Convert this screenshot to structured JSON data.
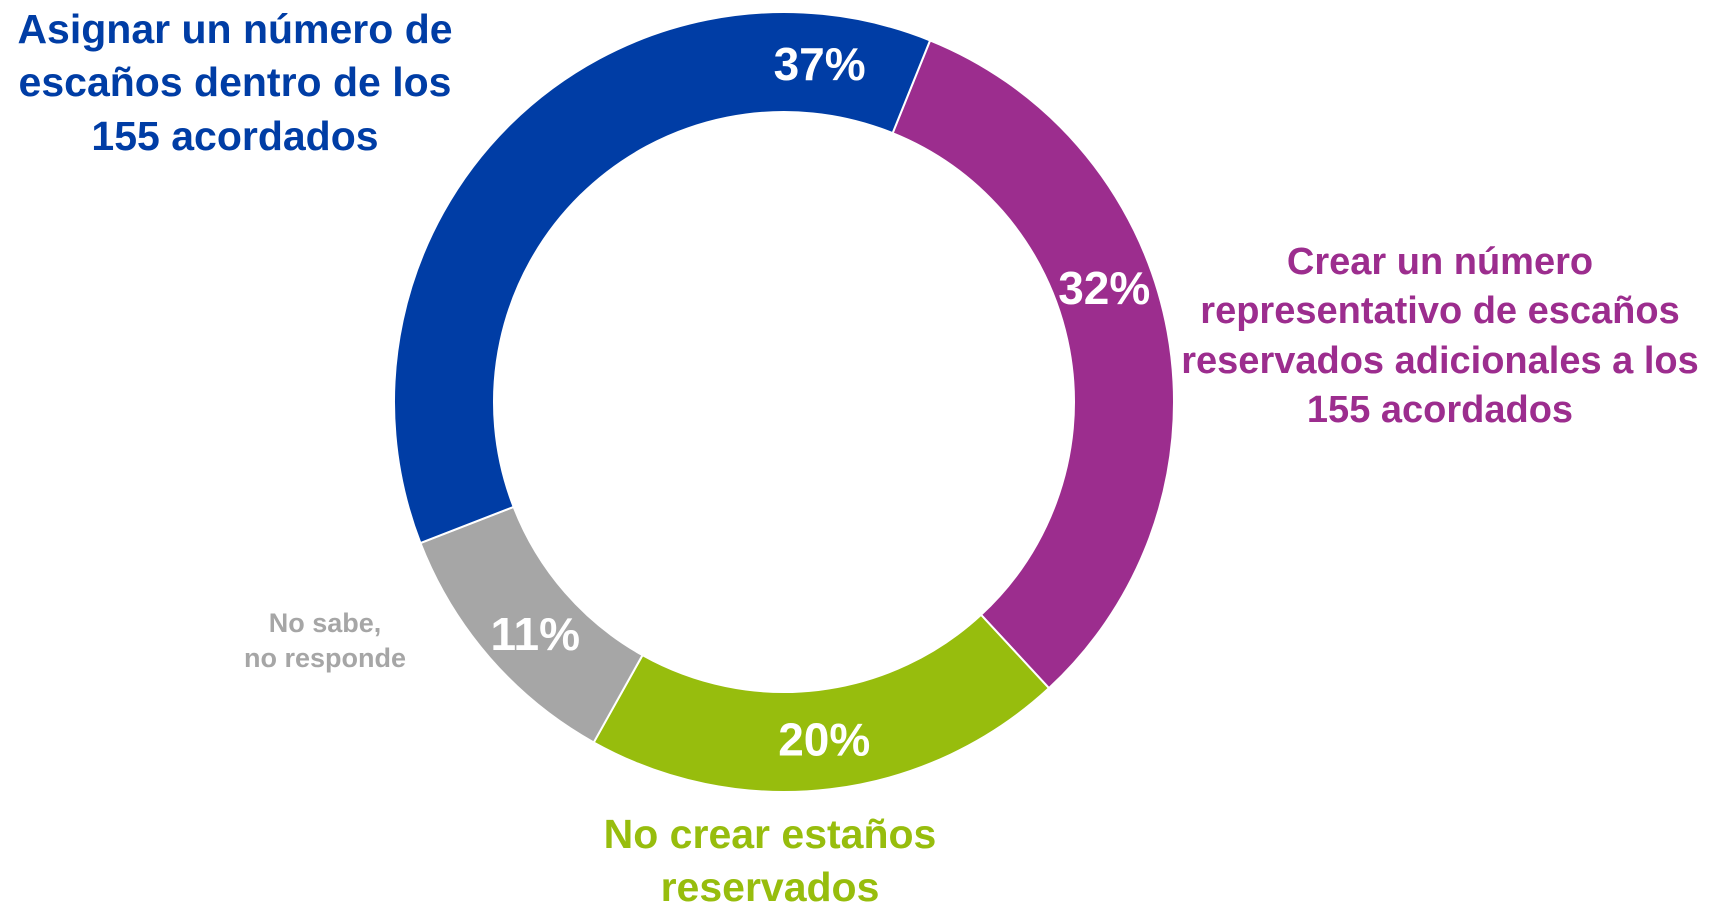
{
  "chart_data": {
    "type": "pie",
    "style": "donut",
    "slices": [
      {
        "name": "Crear un número representativo de escaños reservados adicionales a los 155 acordados",
        "value": 32,
        "label": "32%",
        "color": "#9c2d8e",
        "legend_lines": [
          "Crear un número",
          "representativo de escaños",
          "reservados adicionales a los",
          "155 acordados"
        ]
      },
      {
        "name": "No crear estaños reservados",
        "value": 20,
        "label": "20%",
        "color": "#97bd0d",
        "legend_lines": [
          "No crear estaños",
          "reservados"
        ]
      },
      {
        "name": "No sabe, no responde",
        "value": 11,
        "label": "11%",
        "color": "#a6a6a6",
        "legend_lines": [
          "No sabe,",
          "no responde"
        ]
      },
      {
        "name": "Asignar un número de escaños dentro de los 155 acordados",
        "value": 37,
        "label": "37%",
        "color": "#003da5",
        "legend_lines": [
          "Asignar un número de",
          "escaños dentro de los",
          "155 acordados"
        ]
      }
    ]
  }
}
